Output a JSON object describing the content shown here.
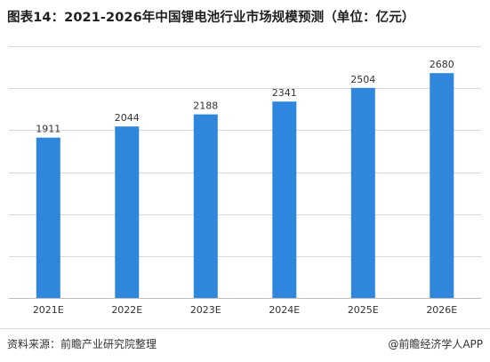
{
  "title": "图表14：2021-2026年中国锂电池行业市场规模预测（单位：亿元）",
  "source_text": "资料来源：前瞻产业研究院整理",
  "brand_text": "@前瞻经济学人APP",
  "colors": {
    "bar": "#2F86DD",
    "grid": "#D9D9D9",
    "axis": "#BFBFBF",
    "label": "#333333"
  },
  "chart_data": {
    "type": "bar",
    "categories": [
      "2021E",
      "2022E",
      "2023E",
      "2024E",
      "2025E",
      "2026E"
    ],
    "values": [
      1911,
      2044,
      2188,
      2341,
      2504,
      2680
    ],
    "title": "2021-2026年中国锂电池行业市场规模预测（单位：亿元）",
    "xlabel": "",
    "ylabel": "",
    "ylim": [
      0,
      3000
    ],
    "grid": true,
    "legend": "none",
    "data_labels": true
  }
}
